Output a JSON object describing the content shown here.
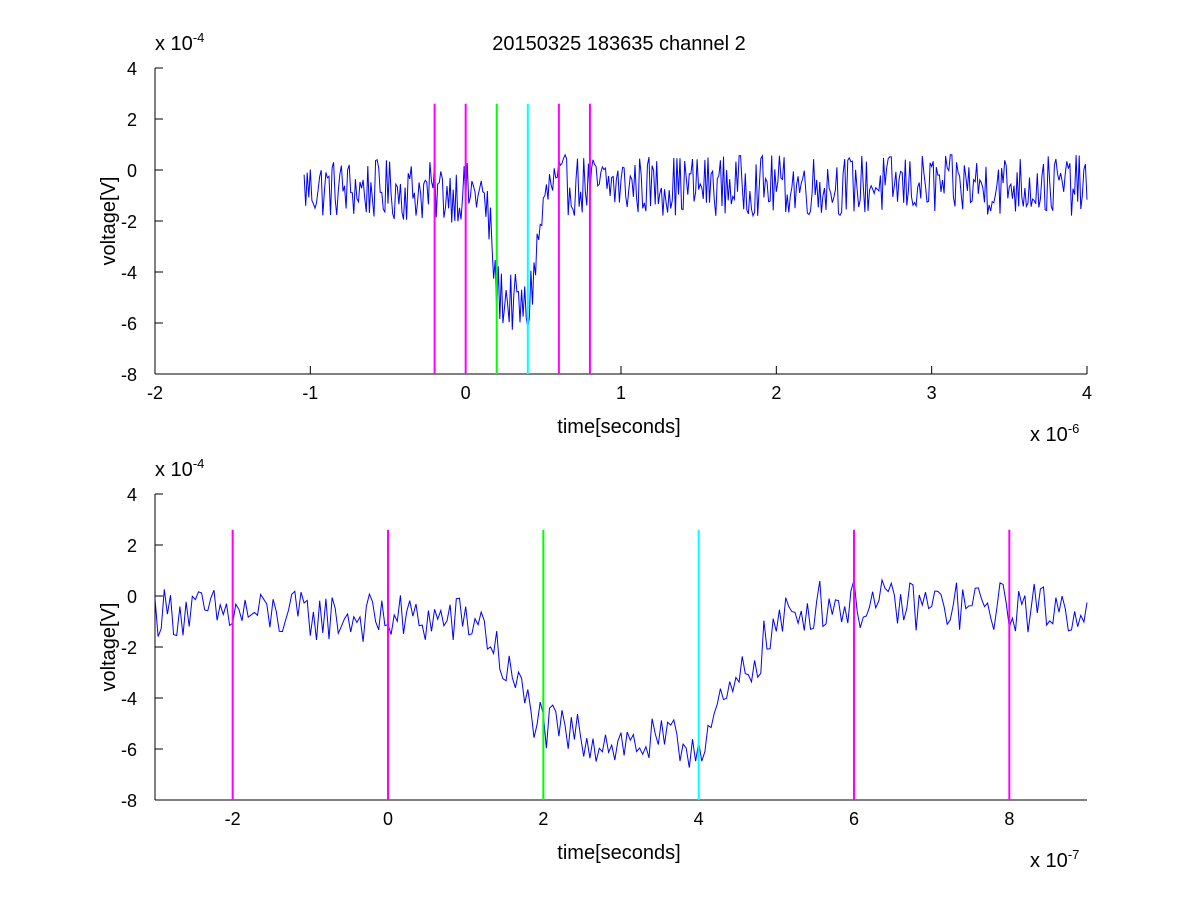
{
  "figure_title": "20150325 183635 channel 2",
  "chart_data": [
    {
      "type": "line",
      "title": "20150325 183635 channel 2",
      "xlabel": "time[seconds]",
      "ylabel": "voltage[V]",
      "x_multiplier": {
        "base": "x 10",
        "exponent": "-6"
      },
      "y_multiplier": {
        "base": "x 10",
        "exponent": "-4"
      },
      "xlim": [
        -2,
        4
      ],
      "ylim": [
        -8,
        4
      ],
      "xticks": [
        "-2",
        "-1",
        "0",
        "1",
        "2",
        "3",
        "4"
      ],
      "yticks": [
        "-8",
        "-6",
        "-4",
        "-2",
        "0",
        "2",
        "4"
      ],
      "grid": false,
      "series": [
        {
          "color": "#0000ff",
          "x_start": -1.04,
          "x_step": 0.01,
          "profile": [
            [
              -1.04,
              -0.7
            ],
            [
              0.1,
              -0.9
            ],
            [
              0.15,
              -2.0
            ],
            [
              0.2,
              -4.8
            ],
            [
              0.4,
              -5.6
            ],
            [
              0.5,
              -1.5
            ],
            [
              0.55,
              -0.6
            ],
            [
              3.96,
              -0.6
            ]
          ],
          "noise": 1.2
        }
      ],
      "markers": [
        {
          "x": -0.2,
          "color": "#ff00ff"
        },
        {
          "x": 0.0,
          "color": "#ff00ff"
        },
        {
          "x": 0.2,
          "color": "#00ff00"
        },
        {
          "x": 0.4,
          "color": "#00ffff"
        },
        {
          "x": 0.6,
          "color": "#ff00ff"
        },
        {
          "x": 0.8,
          "color": "#ff00ff"
        }
      ],
      "marker_ylim": [
        -8,
        2.6
      ]
    },
    {
      "type": "line",
      "title": "",
      "xlabel": "time[seconds]",
      "ylabel": "voltage[V]",
      "x_multiplier": {
        "base": "x 10",
        "exponent": "-7"
      },
      "y_multiplier": {
        "base": "x 10",
        "exponent": "-4"
      },
      "xlim": [
        -3,
        9
      ],
      "ylim": [
        -8,
        4
      ],
      "xticks": [
        "-2",
        "0",
        "2",
        "4",
        "6",
        "8"
      ],
      "yticks": [
        "-8",
        "-6",
        "-4",
        "-2",
        "0",
        "2",
        "4"
      ],
      "grid": false,
      "series": [
        {
          "color": "#0000ff",
          "x_start": -3,
          "x_step": 0.04,
          "profile": [
            [
              -3,
              -0.6
            ],
            [
              1.2,
              -1.0
            ],
            [
              1.5,
              -2.8
            ],
            [
              2.0,
              -5.2
            ],
            [
              3.0,
              -5.8
            ],
            [
              4.0,
              -5.8
            ],
            [
              4.4,
              -4.0
            ],
            [
              5.0,
              -1.2
            ],
            [
              5.5,
              -0.3
            ],
            [
              9,
              -0.5
            ]
          ],
          "noise": 1.0
        }
      ],
      "markers": [
        {
          "x": -2,
          "color": "#ff00ff"
        },
        {
          "x": 0,
          "color": "#ff00ff"
        },
        {
          "x": 2,
          "color": "#00ff00"
        },
        {
          "x": 4,
          "color": "#00ffff"
        },
        {
          "x": 6,
          "color": "#ff00ff"
        },
        {
          "x": 8,
          "color": "#ff00ff"
        }
      ],
      "marker_ylim": [
        -8,
        2.6
      ]
    }
  ]
}
